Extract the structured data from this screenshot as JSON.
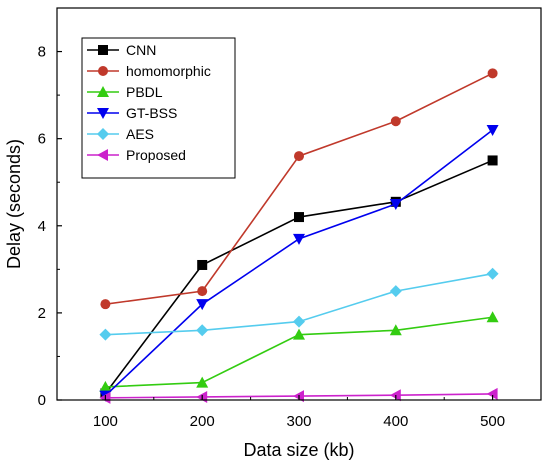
{
  "chart_data": {
    "type": "line",
    "title": "",
    "xlabel": "Data size (kb)",
    "ylabel": "Delay (seconds)",
    "x": [
      100,
      200,
      300,
      400,
      500
    ],
    "xlim": [
      50,
      550
    ],
    "ylim": [
      0,
      9
    ],
    "xticks": [
      100,
      200,
      300,
      400,
      500
    ],
    "yticks": [
      0,
      2,
      4,
      6,
      8
    ],
    "grid": false,
    "legend_position": "top-left",
    "series": [
      {
        "name": "CNN",
        "values": [
          0.15,
          3.1,
          4.2,
          4.55,
          5.5
        ],
        "color": "#000000",
        "marker": "square"
      },
      {
        "name": "homomorphic",
        "values": [
          2.2,
          2.5,
          5.6,
          6.4,
          7.5
        ],
        "color": "#c0392b",
        "marker": "circle"
      },
      {
        "name": "PBDL",
        "values": [
          0.3,
          0.4,
          1.5,
          1.6,
          1.9
        ],
        "color": "#33cc11",
        "marker": "triangle-up"
      },
      {
        "name": "GT-BSS",
        "values": [
          0.1,
          2.2,
          3.7,
          4.5,
          6.2
        ],
        "color": "#0000ee",
        "marker": "triangle-down"
      },
      {
        "name": "AES",
        "values": [
          1.5,
          1.6,
          1.8,
          2.5,
          2.9
        ],
        "color": "#55ccee",
        "marker": "diamond"
      },
      {
        "name": "Proposed",
        "values": [
          0.05,
          0.07,
          0.09,
          0.11,
          0.14
        ],
        "color": "#cc22cc",
        "marker": "triangle-left"
      }
    ]
  }
}
